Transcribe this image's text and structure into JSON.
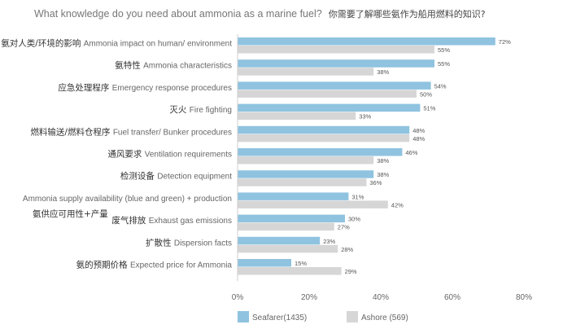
{
  "chart_data": {
    "type": "bar",
    "orientation": "horizontal",
    "title_en": "What knowledge do you need about ammonia as a marine fuel?",
    "title_zh": "你需要了解哪些氨作为船用燃料的知识?",
    "categories": [
      {
        "zh": "氨对人类/环境的影响",
        "en": "Ammonia impact on human/ environment"
      },
      {
        "zh": "氨特性",
        "en": "Ammonia characteristics"
      },
      {
        "zh": "应急处理程序",
        "en": "Emergency response procedures"
      },
      {
        "zh": "灭火",
        "en": "Fire fighting"
      },
      {
        "zh": "燃料输送/燃料仓程序",
        "en": "Fuel transfer/ Bunker procedures"
      },
      {
        "zh": "通风要求",
        "en": "Ventilation requirements"
      },
      {
        "zh": "检测设备",
        "en": "Detection equipment"
      },
      {
        "zh": "氨供应可用性+产量",
        "en": "Ammonia supply availability (blue and green) + production"
      },
      {
        "zh": "废气排放",
        "en": "Exhaust gas emissions"
      },
      {
        "zh": "扩散性",
        "en": "Dispersion facts"
      },
      {
        "zh": "氨的预期价格",
        "en": "Expected price for Ammonia"
      }
    ],
    "series": [
      {
        "name": "Seafarer(1435)",
        "color": "#8fc3e0",
        "values": [
          72,
          55,
          54,
          51,
          48,
          46,
          38,
          31,
          30,
          23,
          15
        ]
      },
      {
        "name": "Ashore (569)",
        "color": "#d6d6d6",
        "values": [
          55,
          38,
          50,
          33,
          48,
          38,
          36,
          42,
          27,
          28,
          29
        ]
      }
    ],
    "value_suffix": "%",
    "xlim": [
      0,
      80
    ],
    "xticks": [
      0,
      20,
      40,
      60,
      80
    ],
    "tick_labels": [
      "0%",
      "20%",
      "40%",
      "60%",
      "80%"
    ],
    "legend_position": "bottom"
  }
}
